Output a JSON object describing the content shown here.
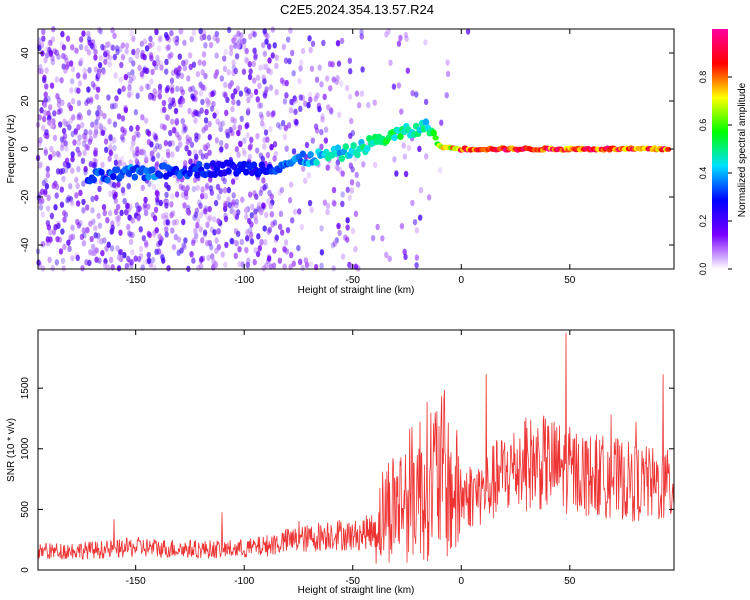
{
  "title": "C2E5.2024.354.13.57.R24",
  "chart_data": [
    {
      "type": "heatmap",
      "title": "C2E5.2024.354.13.57.R24",
      "xlabel": "Height of straight line (km)",
      "ylabel": "Frequency (Hz)",
      "xlim": [
        -195,
        98
      ],
      "ylim": [
        -50,
        50
      ],
      "xticks": [
        -150,
        -100,
        -50,
        0,
        50
      ],
      "yticks": [
        -40,
        -20,
        0,
        20,
        40
      ],
      "grid": false,
      "colorbar": {
        "label": "Normalized spectral amplitude",
        "range": [
          0,
          1
        ],
        "ticks": [
          0.0,
          0.2,
          0.4,
          0.6,
          0.8
        ],
        "tick_labels": [
          "0.0",
          "0.2",
          "0.4",
          "0.6",
          "0.8"
        ],
        "colormap": [
          "#ffffff",
          "#7a00ff",
          "#0000ff",
          "#00e0ff",
          "#00ff00",
          "#ffff00",
          "#ff0000",
          "#ff00a0"
        ]
      },
      "ridge": {
        "x": [
          -170,
          -150,
          -130,
          -110,
          -90,
          -70,
          -50,
          -40,
          -30,
          -20,
          -15,
          -10,
          0,
          20,
          40,
          60,
          80,
          95
        ],
        "y": [
          -12,
          -10,
          -9,
          -8,
          -8,
          -4,
          -1,
          3,
          6,
          8,
          10,
          1,
          0,
          0,
          0,
          0,
          0,
          0
        ],
        "amplitude": [
          0.35,
          0.4,
          0.35,
          0.3,
          0.3,
          0.45,
          0.5,
          0.55,
          0.55,
          0.5,
          0.5,
          0.7,
          0.9,
          0.95,
          0.95,
          0.95,
          0.95,
          0.9
        ]
      }
    },
    {
      "type": "line",
      "xlabel": "Height of straight line (km)",
      "ylabel": "SNR (10 * v/v)",
      "xlim": [
        -195,
        98
      ],
      "ylim": [
        0,
        1980
      ],
      "xticks": [
        -150,
        -100,
        -50,
        0,
        50
      ],
      "yticks": [
        0,
        500,
        1000,
        1500
      ],
      "grid": false,
      "color": "#ee3333",
      "series": [
        {
          "x": [
            -195,
            -180,
            -160,
            -150,
            -140,
            -120,
            -100,
            -90,
            -80,
            -70,
            -60,
            -50,
            -40,
            -35,
            -30,
            -25,
            -20,
            -15,
            -10,
            -5,
            0,
            10,
            20,
            30,
            40,
            50,
            60,
            70,
            80,
            90,
            98
          ],
          "y": [
            150,
            160,
            170,
            190,
            180,
            170,
            175,
            200,
            240,
            260,
            300,
            280,
            330,
            500,
            550,
            600,
            700,
            750,
            800,
            650,
            600,
            650,
            800,
            880,
            880,
            820,
            780,
            760,
            720,
            700,
            680
          ]
        }
      ]
    }
  ]
}
